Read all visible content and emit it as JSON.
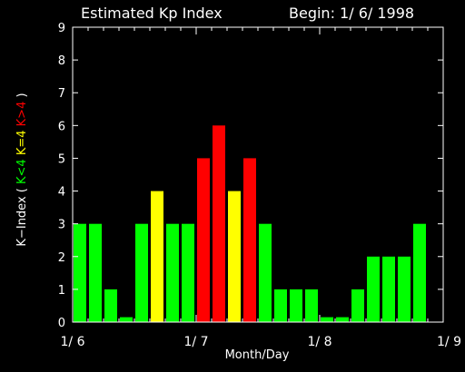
{
  "chart_data": {
    "type": "bar",
    "title": "Estimated Kp Index",
    "subtitle": "Begin: 1/ 6/ 1998",
    "xlabel": "Month/Day",
    "ylabel_parts": [
      {
        "text": "K−Index (",
        "color": "#ffffff"
      },
      {
        "text": "K<4",
        "color": "#00ff00"
      },
      {
        "text": "K=4",
        "color": "#ffff00"
      },
      {
        "text": "K>4",
        "color": "#ff0000"
      },
      {
        "text": ")",
        "color": "#ffffff"
      }
    ],
    "ylim": [
      0,
      9
    ],
    "yticks": [
      0,
      1,
      2,
      3,
      4,
      5,
      6,
      7,
      8,
      9
    ],
    "xlim": [
      0,
      24
    ],
    "xticks": [
      {
        "at": 0,
        "label": "1/ 6"
      },
      {
        "at": 8,
        "label": "1/ 7"
      },
      {
        "at": 16,
        "label": "1/ 8"
      },
      {
        "at": 24,
        "label": "1/ 9"
      }
    ],
    "colors": {
      "low": "#00ff00",
      "equal": "#ffff00",
      "high": "#ff0000",
      "axis": "#ffffff"
    },
    "values": [
      3,
      3,
      1,
      0.15,
      3,
      4,
      3,
      3,
      5,
      6,
      4,
      5,
      3,
      1,
      1,
      1,
      0.15,
      0.15,
      1,
      2,
      2,
      2,
      3
    ]
  }
}
